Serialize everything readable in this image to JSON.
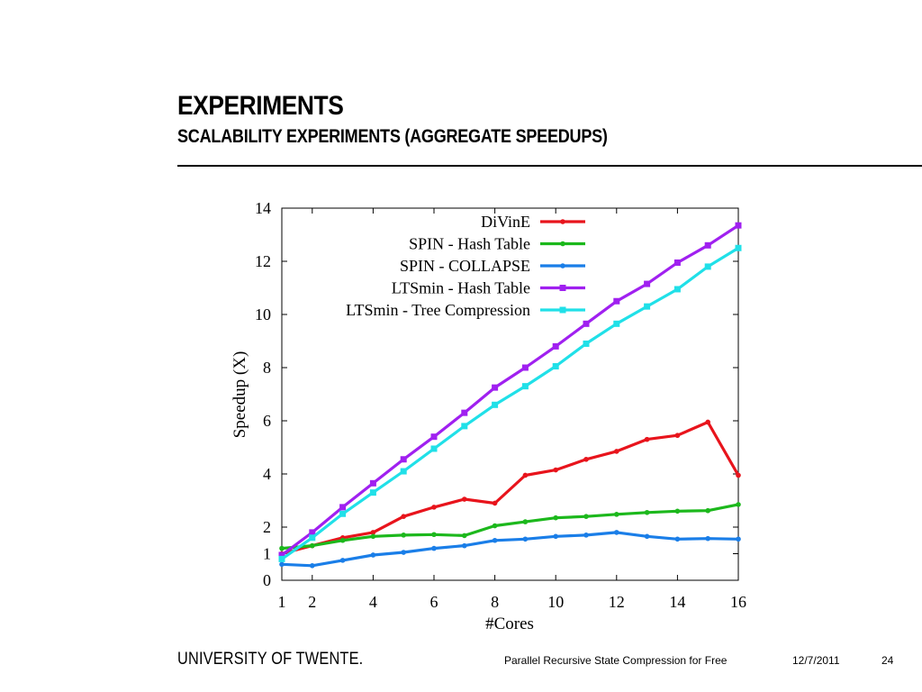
{
  "slide": {
    "title": "EXPERIMENTS",
    "subtitle": "SCALABILITY EXPERIMENTS (AGGREGATE SPEEDUPS)"
  },
  "footer": {
    "logo": "UNIVERSITY OF TWENTE.",
    "presentation_title": "Parallel Recursive State Compression for Free",
    "date": "12/7/2011",
    "page_number": "24"
  },
  "chart_data": {
    "type": "line",
    "title": "",
    "xlabel": "#Cores",
    "ylabel": "Speedup (X)",
    "xlim": [
      1,
      16
    ],
    "ylim": [
      0,
      14
    ],
    "xticks": [
      1,
      2,
      4,
      6,
      8,
      10,
      12,
      14,
      16
    ],
    "yticks": [
      0,
      1,
      2,
      4,
      6,
      8,
      10,
      12,
      14
    ],
    "grid": false,
    "legend_position": "top-right",
    "x": [
      1,
      2,
      3,
      4,
      5,
      6,
      7,
      8,
      9,
      10,
      11,
      12,
      13,
      14,
      15,
      16
    ],
    "series": [
      {
        "name": "DiVinE",
        "color": "#e8141c",
        "marker": "dot",
        "values": [
          1.0,
          1.3,
          1.6,
          1.8,
          2.4,
          2.75,
          3.05,
          2.9,
          3.95,
          4.15,
          4.55,
          4.85,
          5.3,
          5.45,
          5.95,
          3.95
        ]
      },
      {
        "name": "SPIN - Hash Table",
        "color": "#1cb81c",
        "marker": "dot",
        "values": [
          1.2,
          1.3,
          1.5,
          1.65,
          1.7,
          1.72,
          1.68,
          2.05,
          2.2,
          2.35,
          2.4,
          2.48,
          2.55,
          2.6,
          2.62,
          2.85
        ]
      },
      {
        "name": "SPIN - COLLAPSE",
        "color": "#1a7ee8",
        "marker": "dot",
        "values": [
          0.6,
          0.55,
          0.75,
          0.95,
          1.05,
          1.2,
          1.3,
          1.5,
          1.55,
          1.65,
          1.7,
          1.8,
          1.65,
          1.55,
          1.57,
          1.55
        ]
      },
      {
        "name": "LTSmin - Hash Table",
        "color": "#a020f0",
        "marker": "square",
        "values": [
          0.95,
          1.8,
          2.75,
          3.65,
          4.55,
          5.4,
          6.3,
          7.25,
          8.0,
          8.8,
          9.65,
          10.5,
          11.15,
          11.95,
          12.6,
          13.35
        ]
      },
      {
        "name": "LTSmin - Tree Compression",
        "color": "#20e0e8",
        "marker": "square",
        "values": [
          0.8,
          1.6,
          2.5,
          3.3,
          4.1,
          4.95,
          5.8,
          6.6,
          7.3,
          8.05,
          8.9,
          9.65,
          10.3,
          10.95,
          11.8,
          12.5
        ]
      }
    ]
  }
}
